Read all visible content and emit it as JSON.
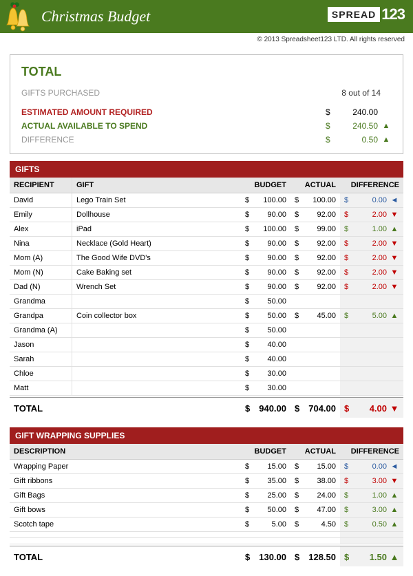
{
  "header": {
    "title": "Christmas Budget",
    "logo_part1": "SPREAD",
    "logo_part2": "123",
    "copyright": "© 2013 Spreadsheet123 LTD. All rights reserved"
  },
  "summary": {
    "total_label": "TOTAL",
    "purchased_label": "GIFTS PURCHASED",
    "purchased_value": "8 out of 14",
    "estimated_label": "ESTIMATED AMOUNT REQUIRED",
    "estimated_cur": "$",
    "estimated_val": "240.00",
    "actual_label": "ACTUAL AVAILABLE TO SPEND",
    "actual_cur": "$",
    "actual_val": "240.50",
    "actual_ind": "▲",
    "difference_label": "DIFFERENCE",
    "difference_cur": "$",
    "difference_val": "0.50",
    "difference_ind": "▲"
  },
  "gifts": {
    "title": "GIFTS",
    "cols": {
      "recipient": "RECIPIENT",
      "gift": "GIFT",
      "budget": "BUDGET",
      "actual": "ACTUAL",
      "difference": "DIFFERENCE"
    },
    "rows": [
      {
        "recipient": "David",
        "gift": "Lego Train Set",
        "budget": "100.00",
        "actual": "100.00",
        "diff": "0.00",
        "diff_class": "diff-blue",
        "ind": "◄",
        "ind_class": "ind-blue"
      },
      {
        "recipient": "Emily",
        "gift": "Dollhouse",
        "budget": "90.00",
        "actual": "92.00",
        "diff": "2.00",
        "diff_class": "diff-red",
        "ind": "▼",
        "ind_class": "ind-red"
      },
      {
        "recipient": "Alex",
        "gift": "iPad",
        "budget": "100.00",
        "actual": "99.00",
        "diff": "1.00",
        "diff_class": "diff-green",
        "ind": "▲",
        "ind_class": "ind-green"
      },
      {
        "recipient": "Nina",
        "gift": "Necklace (Gold Heart)",
        "budget": "90.00",
        "actual": "92.00",
        "diff": "2.00",
        "diff_class": "diff-red",
        "ind": "▼",
        "ind_class": "ind-red"
      },
      {
        "recipient": "Mom (A)",
        "gift": "The Good Wife DVD's",
        "budget": "90.00",
        "actual": "92.00",
        "diff": "2.00",
        "diff_class": "diff-red",
        "ind": "▼",
        "ind_class": "ind-red"
      },
      {
        "recipient": "Mom (N)",
        "gift": "Cake Baking set",
        "budget": "90.00",
        "actual": "92.00",
        "diff": "2.00",
        "diff_class": "diff-red",
        "ind": "▼",
        "ind_class": "ind-red"
      },
      {
        "recipient": "Dad (N)",
        "gift": "Wrench Set",
        "budget": "90.00",
        "actual": "92.00",
        "diff": "2.00",
        "diff_class": "diff-red",
        "ind": "▼",
        "ind_class": "ind-red"
      },
      {
        "recipient": "Grandma",
        "gift": "",
        "budget": "50.00",
        "actual": "",
        "diff": "",
        "diff_class": "",
        "ind": "",
        "ind_class": ""
      },
      {
        "recipient": "Grandpa",
        "gift": "Coin collector box",
        "budget": "50.00",
        "actual": "45.00",
        "diff": "5.00",
        "diff_class": "diff-green",
        "ind": "▲",
        "ind_class": "ind-green"
      },
      {
        "recipient": "Grandma (A)",
        "gift": "",
        "budget": "50.00",
        "actual": "",
        "diff": "",
        "diff_class": "",
        "ind": "",
        "ind_class": ""
      },
      {
        "recipient": "Jason",
        "gift": "",
        "budget": "40.00",
        "actual": "",
        "diff": "",
        "diff_class": "",
        "ind": "",
        "ind_class": ""
      },
      {
        "recipient": "Sarah",
        "gift": "",
        "budget": "40.00",
        "actual": "",
        "diff": "",
        "diff_class": "",
        "ind": "",
        "ind_class": ""
      },
      {
        "recipient": "Chloe",
        "gift": "",
        "budget": "30.00",
        "actual": "",
        "diff": "",
        "diff_class": "",
        "ind": "",
        "ind_class": ""
      },
      {
        "recipient": "Matt",
        "gift": "",
        "budget": "30.00",
        "actual": "",
        "diff": "",
        "diff_class": "",
        "ind": "",
        "ind_class": ""
      }
    ],
    "total": {
      "label": "TOTAL",
      "budget": "940.00",
      "actual": "704.00",
      "diff": "4.00",
      "diff_class": "diff-red",
      "ind": "▼",
      "ind_class": "ind-red"
    }
  },
  "wrapping": {
    "title": "GIFT WRAPPING SUPPLIES",
    "cols": {
      "description": "DESCRIPTION",
      "budget": "BUDGET",
      "actual": "ACTUAL",
      "difference": "DIFFERENCE"
    },
    "rows": [
      {
        "description": "Wrapping Paper",
        "budget": "15.00",
        "actual": "15.00",
        "diff": "0.00",
        "diff_class": "diff-blue",
        "ind": "◄",
        "ind_class": "ind-blue"
      },
      {
        "description": "Gift ribbons",
        "budget": "35.00",
        "actual": "38.00",
        "diff": "3.00",
        "diff_class": "diff-red",
        "ind": "▼",
        "ind_class": "ind-red"
      },
      {
        "description": "Gift Bags",
        "budget": "25.00",
        "actual": "24.00",
        "diff": "1.00",
        "diff_class": "diff-green",
        "ind": "▲",
        "ind_class": "ind-green"
      },
      {
        "description": "Gift bows",
        "budget": "50.00",
        "actual": "47.00",
        "diff": "3.00",
        "diff_class": "diff-green",
        "ind": "▲",
        "ind_class": "ind-green"
      },
      {
        "description": "Scotch tape",
        "budget": "5.00",
        "actual": "4.50",
        "diff": "0.50",
        "diff_class": "diff-green",
        "ind": "▲",
        "ind_class": "ind-green"
      },
      {
        "description": "",
        "budget": "",
        "actual": "",
        "diff": "",
        "diff_class": "",
        "ind": "",
        "ind_class": ""
      },
      {
        "description": "",
        "budget": "",
        "actual": "",
        "diff": "",
        "diff_class": "",
        "ind": "",
        "ind_class": ""
      }
    ],
    "total": {
      "label": "TOTAL",
      "budget": "130.00",
      "actual": "128.50",
      "diff": "1.50",
      "diff_class": "diff-green",
      "ind": "▲",
      "ind_class": "ind-green"
    }
  },
  "cur": "$",
  "colors": {
    "header_bg": "#4a7a1f",
    "section_bg": "#a01e1e",
    "positive": "#4a7a1f",
    "negative": "#c00000",
    "neutral": "#2a5aa0"
  }
}
